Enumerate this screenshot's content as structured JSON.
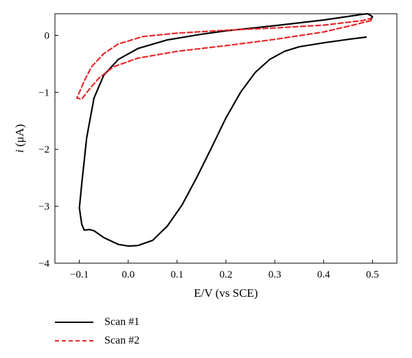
{
  "chart_data": {
    "type": "line",
    "xlabel": "E/V (vs SCE)",
    "ylabel_italic": "i",
    "ylabel_unit": " (μA)",
    "xlim": [
      -0.15,
      0.55
    ],
    "ylim": [
      -4,
      0.38
    ],
    "x_ticks": [
      -0.1,
      0.0,
      0.1,
      0.2,
      0.3,
      0.4,
      0.5
    ],
    "x_tick_labels": [
      "−0.1",
      "0.0",
      "0.1",
      "0.2",
      "0.3",
      "0.4",
      "0.5"
    ],
    "y_ticks": [
      0,
      -1,
      -2,
      -3,
      -4
    ],
    "y_tick_labels": [
      "0",
      "−1",
      "−2",
      "−3",
      "−4"
    ],
    "grid": false,
    "legend_position": "bottom-left, below plot",
    "series": [
      {
        "name": "Scan #1",
        "color": "#000000",
        "dash": "solid",
        "points": [
          [
            0.487,
            -0.03
          ],
          [
            0.45,
            -0.07
          ],
          [
            0.4,
            -0.13
          ],
          [
            0.35,
            -0.2
          ],
          [
            0.32,
            -0.28
          ],
          [
            0.29,
            -0.42
          ],
          [
            0.26,
            -0.65
          ],
          [
            0.23,
            -1.0
          ],
          [
            0.2,
            -1.45
          ],
          [
            0.17,
            -1.98
          ],
          [
            0.14,
            -2.5
          ],
          [
            0.11,
            -2.98
          ],
          [
            0.08,
            -3.35
          ],
          [
            0.05,
            -3.6
          ],
          [
            0.02,
            -3.69
          ],
          [
            0.0,
            -3.7
          ],
          [
            -0.02,
            -3.67
          ],
          [
            -0.05,
            -3.55
          ],
          [
            -0.07,
            -3.43
          ],
          [
            -0.08,
            -3.41
          ],
          [
            -0.09,
            -3.42
          ],
          [
            -0.095,
            -3.32
          ],
          [
            -0.1,
            -3.03
          ],
          [
            -0.095,
            -2.6
          ],
          [
            -0.085,
            -1.8
          ],
          [
            -0.07,
            -1.1
          ],
          [
            -0.05,
            -0.7
          ],
          [
            -0.02,
            -0.42
          ],
          [
            0.02,
            -0.23
          ],
          [
            0.08,
            -0.08
          ],
          [
            0.15,
            0.02
          ],
          [
            0.2,
            0.08
          ],
          [
            0.3,
            0.17
          ],
          [
            0.4,
            0.27
          ],
          [
            0.48,
            0.37
          ],
          [
            0.49,
            0.38
          ],
          [
            0.5,
            0.33
          ],
          [
            0.497,
            0.28
          ]
        ]
      },
      {
        "name": "Scan #2",
        "color": "#e8262a",
        "dash": "dashed",
        "points": [
          [
            0.497,
            0.26
          ],
          [
            0.46,
            0.18
          ],
          [
            0.4,
            0.06
          ],
          [
            0.3,
            -0.07
          ],
          [
            0.2,
            -0.18
          ],
          [
            0.1,
            -0.28
          ],
          [
            0.02,
            -0.4
          ],
          [
            -0.03,
            -0.55
          ],
          [
            -0.06,
            -0.75
          ],
          [
            -0.08,
            -0.95
          ],
          [
            -0.095,
            -1.12
          ],
          [
            -0.105,
            -1.1
          ],
          [
            -0.1,
            -1.0
          ],
          [
            -0.09,
            -0.8
          ],
          [
            -0.075,
            -0.55
          ],
          [
            -0.05,
            -0.32
          ],
          [
            -0.02,
            -0.15
          ],
          [
            0.03,
            -0.02
          ],
          [
            0.1,
            0.04
          ],
          [
            0.2,
            0.09
          ],
          [
            0.3,
            0.13
          ],
          [
            0.4,
            0.18
          ],
          [
            0.48,
            0.26
          ],
          [
            0.497,
            0.3
          ]
        ]
      }
    ]
  }
}
